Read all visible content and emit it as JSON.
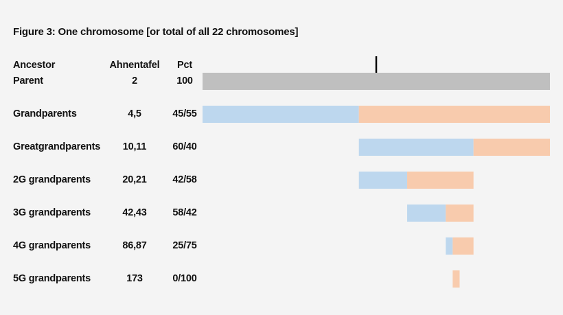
{
  "figure": {
    "title": "Figure 3: One chromosome [or total of all 22 chromosomes]"
  },
  "table": {
    "headers": {
      "ancestor": "Ancestor",
      "ahnentafel": "Ahnentafel",
      "pct": "Pct"
    },
    "rows": [
      {
        "ancestor": "Parent",
        "ahnentafel": "2",
        "pct": "100"
      },
      {
        "ancestor": "Grandparents",
        "ahnentafel": "4,5",
        "pct": "45/55"
      },
      {
        "ancestor": "Greatgrandparents",
        "ahnentafel": "10,11",
        "pct": "60/40"
      },
      {
        "ancestor": "2G grandparents",
        "ahnentafel": "20,21",
        "pct": "42/58"
      },
      {
        "ancestor": "3G grandparents",
        "ahnentafel": "42,43",
        "pct": "58/42"
      },
      {
        "ancestor": "4G grandparents",
        "ahnentafel": "86,87",
        "pct": "25/75"
      },
      {
        "ancestor": "5G grandparents",
        "ahnentafel": "173",
        "pct": "0/100"
      }
    ]
  },
  "chart_data": {
    "type": "bar",
    "orientation": "horizontal-stacked",
    "xlim": [
      0,
      100
    ],
    "center_marker": 50,
    "colors": {
      "total": "#bfbfbf",
      "paternal": "#bdd7ee",
      "maternal": "#f8cbad"
    },
    "rows": [
      {
        "start": 0,
        "segments": [
          {
            "value": 100,
            "color": "total"
          }
        ]
      },
      {
        "start": 0,
        "segments": [
          {
            "value": 45,
            "color": "paternal"
          },
          {
            "value": 55,
            "color": "maternal"
          }
        ]
      },
      {
        "start": 45,
        "segments": [
          {
            "value": 33,
            "color": "paternal"
          },
          {
            "value": 22,
            "color": "maternal"
          }
        ]
      },
      {
        "start": 45,
        "segments": [
          {
            "value": 13.9,
            "color": "paternal"
          },
          {
            "value": 19.1,
            "color": "maternal"
          }
        ]
      },
      {
        "start": 58.9,
        "segments": [
          {
            "value": 11.1,
            "color": "paternal"
          },
          {
            "value": 8,
            "color": "maternal"
          }
        ]
      },
      {
        "start": 70,
        "segments": [
          {
            "value": 2,
            "color": "paternal"
          },
          {
            "value": 6,
            "color": "maternal"
          }
        ]
      },
      {
        "start": 72,
        "segments": [
          {
            "value": 0,
            "color": "paternal"
          },
          {
            "value": 2,
            "color": "maternal"
          }
        ]
      }
    ]
  }
}
